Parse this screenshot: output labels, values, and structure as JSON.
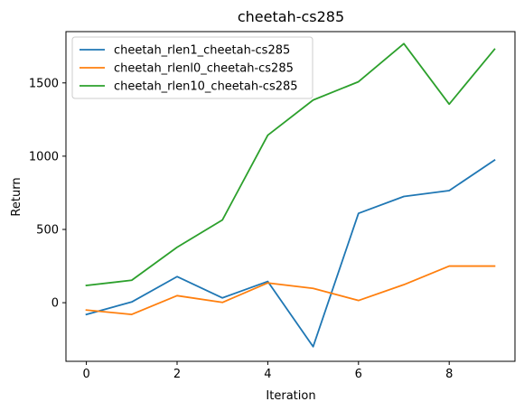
{
  "chart_data": {
    "type": "line",
    "title": "cheetah-cs285",
    "xlabel": "Iteration",
    "ylabel": "Return",
    "xlim": [
      -0.45,
      9.45
    ],
    "ylim": [
      -400,
      1850
    ],
    "xticks": [
      0,
      2,
      4,
      6,
      8
    ],
    "yticks": [
      0,
      500,
      1000,
      1500
    ],
    "grid": false,
    "legend_position": "top-left",
    "x": [
      0,
      1,
      2,
      3,
      4,
      5,
      6,
      7,
      8,
      9
    ],
    "series": [
      {
        "name": "cheetah_rlen1_cheetah-cs285",
        "color": "#1f77b4",
        "values": [
          -80,
          5,
          178,
          33,
          145,
          -300,
          610,
          725,
          765,
          973
        ]
      },
      {
        "name": "cheetah_rlenl0_cheetah-cs285",
        "color": "#ff7f0e",
        "values": [
          -50,
          -80,
          48,
          2,
          135,
          98,
          15,
          123,
          250,
          250
        ]
      },
      {
        "name": "cheetah_rlen10_cheetah-cs285",
        "color": "#2ca02c",
        "values": [
          118,
          153,
          378,
          565,
          1143,
          1383,
          1508,
          1768,
          1355,
          1730
        ]
      }
    ]
  }
}
